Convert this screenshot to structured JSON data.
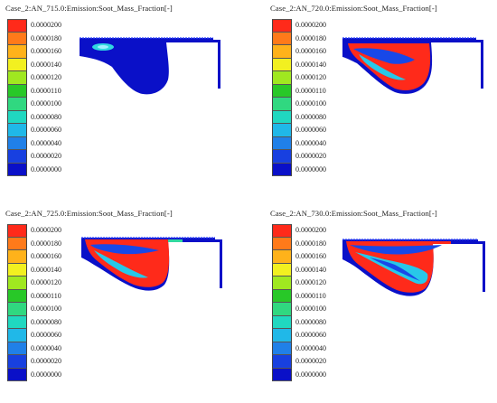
{
  "panels": [
    {
      "title": "Case_2:AN_715.0:Emission:Soot_Mass_Fraction[-]"
    },
    {
      "title": "Case_2:AN_720.0:Emission:Soot_Mass_Fraction[-]"
    },
    {
      "title": "Case_2:AN_725.0:Emission:Soot_Mass_Fraction[-]"
    },
    {
      "title": "Case_2:AN_730.0:Emission:Soot_Mass_Fraction[-]"
    }
  ],
  "legend": {
    "labels": [
      "0.0000200",
      "0.0000180",
      "0.0000160",
      "0.0000140",
      "0.0000120",
      "0.0000110",
      "0.0000100",
      "0.0000080",
      "0.0000060",
      "0.0000040",
      "0.0000020",
      "0.0000000"
    ],
    "colors": [
      "#ff2a1a",
      "#ff7a1a",
      "#ffb21a",
      "#f2f020",
      "#a0e820",
      "#28c828",
      "#30d880",
      "#20d8c0",
      "#20b8e8",
      "#2080e8",
      "#1840e0",
      "#0a10c8"
    ]
  }
}
